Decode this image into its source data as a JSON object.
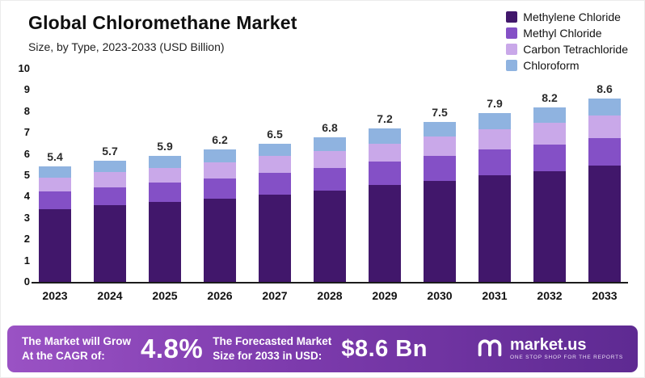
{
  "header": {
    "title": "Global Chloromethane Market",
    "subtitle": "Size, by Type, 2023-2033 (USD Billion)"
  },
  "legend": [
    {
      "label": "Methylene Chloride",
      "color": "#41176b"
    },
    {
      "label": "Methyl Chloride",
      "color": "#8450c6"
    },
    {
      "label": "Carbon Tetrachloride",
      "color": "#c9a8e9"
    },
    {
      "label": "Chloroform",
      "color": "#8fb3e0"
    }
  ],
  "chart_data": {
    "type": "bar",
    "stacked": true,
    "title": "Global Chloromethane Market",
    "subtitle": "Size, by Type, 2023-2033 (USD Billion)",
    "xlabel": "",
    "ylabel": "USD Billion",
    "ylim": [
      0,
      10
    ],
    "ytick_step": 1,
    "yticks": [
      0,
      1,
      2,
      3,
      4,
      5,
      6,
      7,
      8,
      9,
      10
    ],
    "grid": false,
    "legend_position": "top-right",
    "categories": [
      "2023",
      "2024",
      "2025",
      "2026",
      "2027",
      "2028",
      "2029",
      "2030",
      "2031",
      "2032",
      "2033"
    ],
    "totals": [
      5.4,
      5.7,
      5.9,
      6.2,
      6.5,
      6.8,
      7.2,
      7.5,
      7.9,
      8.2,
      8.6
    ],
    "series": [
      {
        "name": "Methylene Chloride",
        "color": "#41176b",
        "values": [
          3.4,
          3.6,
          3.75,
          3.9,
          4.1,
          4.3,
          4.55,
          4.75,
          5.0,
          5.2,
          5.45
        ]
      },
      {
        "name": "Methyl Chloride",
        "color": "#8450c6",
        "values": [
          0.85,
          0.85,
          0.9,
          0.95,
          1.0,
          1.05,
          1.1,
          1.15,
          1.2,
          1.25,
          1.3
        ]
      },
      {
        "name": "Carbon Tetrachloride",
        "color": "#c9a8e9",
        "values": [
          0.65,
          0.7,
          0.7,
          0.75,
          0.8,
          0.8,
          0.85,
          0.9,
          0.95,
          1.0,
          1.05
        ]
      },
      {
        "name": "Chloroform",
        "color": "#8fb3e0",
        "values": [
          0.5,
          0.55,
          0.55,
          0.6,
          0.6,
          0.65,
          0.7,
          0.7,
          0.75,
          0.75,
          0.8
        ]
      }
    ]
  },
  "banner": {
    "left_line1": "The Market will Grow",
    "left_line2": "At the CAGR of:",
    "cagr": "4.8%",
    "mid_line1": "The Forecasted Market",
    "mid_line2": "Size for 2033 in USD:",
    "forecast_size": "$8.6 Bn",
    "logo_name": "market.us",
    "logo_tagline": "One Stop Shop For The Reports"
  }
}
